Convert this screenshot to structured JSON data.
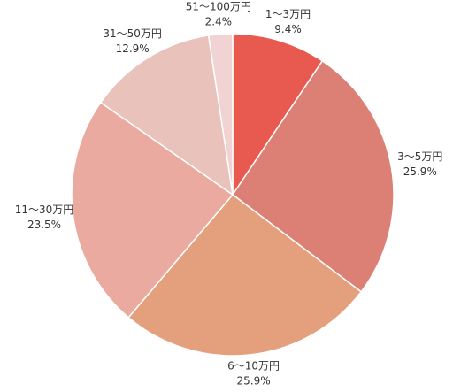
{
  "chart_data": {
    "type": "pie",
    "categories": [
      "1～3万円",
      "3～5万円",
      "6～10万円",
      "11～30万円",
      "31～50万円",
      "51～100万円"
    ],
    "values": [
      9.4,
      25.9,
      25.9,
      23.5,
      12.9,
      2.4
    ],
    "value_labels": [
      "9.4%",
      "25.9%",
      "25.9%",
      "23.5%",
      "12.9%",
      "2.4%"
    ],
    "colors": [
      "#e85a4f",
      "#dc7f74",
      "#e4a07d",
      "#eaaaa0",
      "#e8c2bb",
      "#f2d3d3"
    ]
  }
}
